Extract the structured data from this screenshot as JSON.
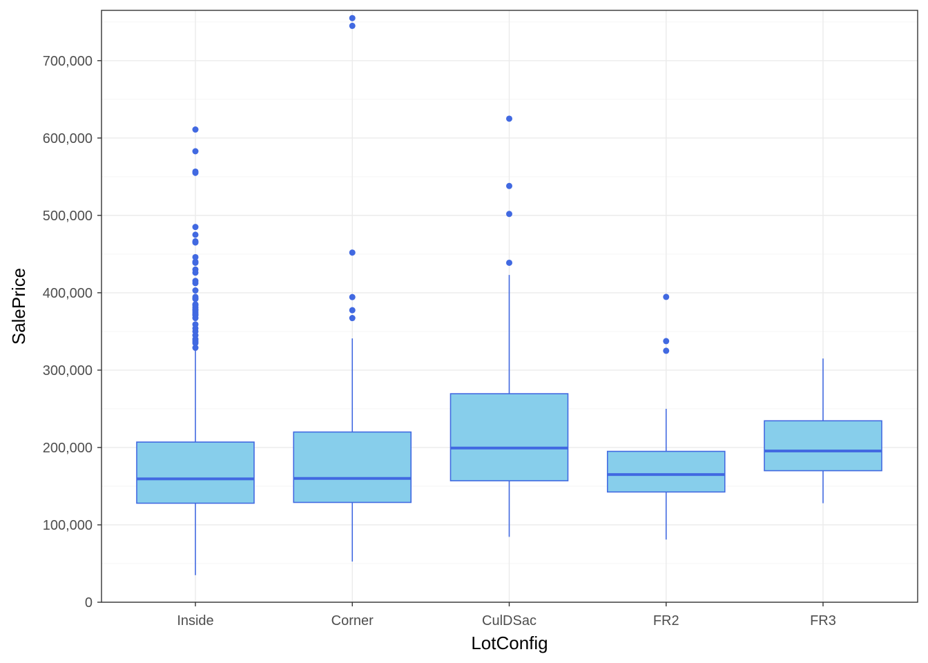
{
  "colors": {
    "box_fill": "#87ceeb",
    "box_stroke": "#4169e1",
    "outlier": "#4169e1",
    "grid_major": "#ebebeb",
    "grid_minor": "#f5f5f5",
    "panel_border": "#333333",
    "tick_text": "#4d4d4d"
  },
  "chart_data": {
    "type": "boxplot",
    "title": "",
    "xlabel": "LotConfig",
    "ylabel": "SalePrice",
    "ylim": [
      0,
      765000
    ],
    "yticks": [
      0,
      100000,
      200000,
      300000,
      400000,
      500000,
      600000,
      700000
    ],
    "ytick_labels": [
      "0",
      "100,000",
      "200,000",
      "300,000",
      "400,000",
      "500,000",
      "600,000",
      "700,000"
    ],
    "categories": [
      "Inside",
      "Corner",
      "CulDSac",
      "FR2",
      "FR3"
    ],
    "boxes": [
      {
        "category": "Inside",
        "whisker_low": 35000,
        "q1": 128000,
        "median": 159500,
        "q3": 207000,
        "whisker_high": 328000,
        "outliers": [
          611000,
          582900,
          556600,
          555000,
          485000,
          475000,
          466500,
          465000,
          446000,
          440000,
          438780,
          430000,
          426000,
          415298,
          412500,
          403000,
          394617,
          392500,
          392000,
          385000,
          383970,
          381000,
          378500,
          377500,
          375000,
          372500,
          370878,
          367294,
          359100,
          354000,
          350000,
          345000,
          340000,
          337500,
          335000,
          328900
        ]
      },
      {
        "category": "Corner",
        "whisker_low": 52500,
        "q1": 129000,
        "median": 160000,
        "q3": 220000,
        "whisker_high": 341000,
        "outliers": [
          755000,
          745000,
          451950,
          394432,
          377426,
          367294
        ]
      },
      {
        "category": "CulDSac",
        "whisker_low": 84500,
        "q1": 157000,
        "median": 199262,
        "q3": 269500,
        "whisker_high": 423000,
        "outliers": [
          625000,
          538000,
          501837,
          438780
        ]
      },
      {
        "category": "FR2",
        "whisker_low": 81000,
        "q1": 142500,
        "median": 165000,
        "q3": 195000,
        "whisker_high": 250000,
        "outliers": [
          394617,
          337500,
          325000
        ]
      },
      {
        "category": "FR3",
        "whisker_low": 128000,
        "q1": 170000,
        "median": 195450,
        "q3": 234500,
        "whisker_high": 315000,
        "outliers": []
      }
    ]
  }
}
